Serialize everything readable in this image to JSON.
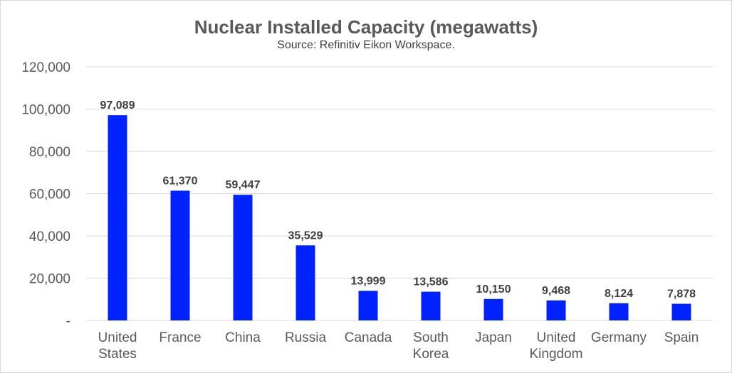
{
  "chart_data": {
    "type": "bar",
    "title": "Nuclear Installed Capacity (megawatts)",
    "subtitle": "Source: Refinitiv Eikon Workspace.",
    "categories": [
      [
        "United",
        "States"
      ],
      [
        "France"
      ],
      [
        "China"
      ],
      [
        "Russia"
      ],
      [
        "Canada"
      ],
      [
        "South",
        "Korea"
      ],
      [
        "Japan"
      ],
      [
        "United",
        "Kingdom"
      ],
      [
        "Germany"
      ],
      [
        "Spain"
      ]
    ],
    "values": [
      97089,
      61370,
      59447,
      35529,
      13999,
      13586,
      10150,
      9468,
      8124,
      7878
    ],
    "data_labels": [
      "97,089",
      "61,370",
      "59,447",
      "35,529",
      "13,999",
      "13,586",
      "10,150",
      "9,468",
      "8,124",
      "7,878"
    ],
    "y_ticks": [
      0,
      20000,
      40000,
      60000,
      80000,
      100000,
      120000
    ],
    "y_tick_labels": [
      "-",
      "20,000",
      "40,000",
      "60,000",
      "80,000",
      "100,000",
      "120,000"
    ],
    "ylim": [
      0,
      120000
    ],
    "grid": true,
    "legend": "none",
    "bar_color": "#0022ff"
  }
}
